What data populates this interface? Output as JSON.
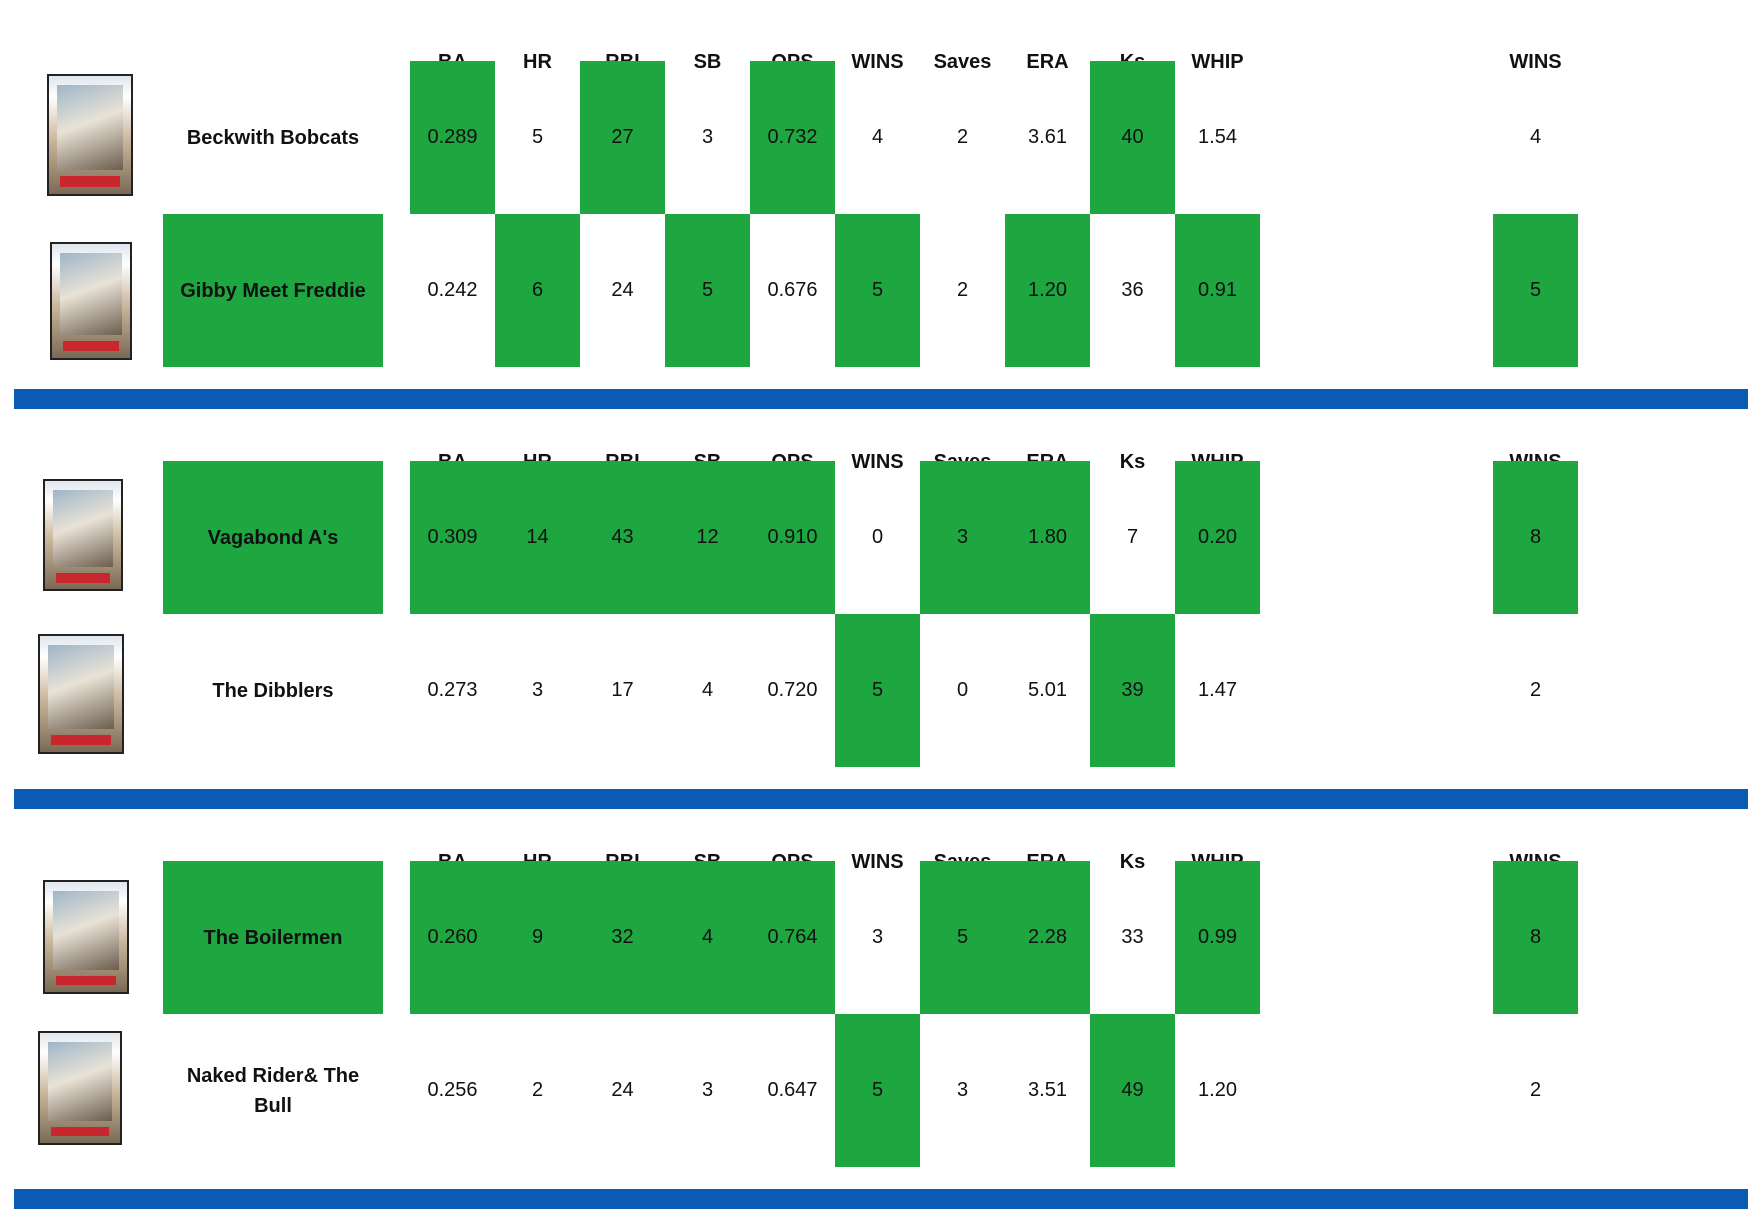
{
  "headers": [
    "BA",
    "HR",
    "RBI",
    "SB",
    "OPS",
    "WINS",
    "Saves",
    "ERA",
    "Ks",
    "WHIP"
  ],
  "wins_header": "WINS",
  "colors": {
    "win_highlight": "#1ea641",
    "divider": "#0b5ab4",
    "background": "#ffffff"
  },
  "card_icon": "baseball-card-image",
  "matchups": [
    {
      "teams": [
        {
          "name": "Beckwith Bobcats",
          "stats": [
            "0.289",
            "5",
            "27",
            "3",
            "0.732",
            "4",
            "2",
            "3.61",
            "40",
            "1.54"
          ],
          "cat_wins": [
            true,
            false,
            true,
            false,
            true,
            false,
            false,
            false,
            true,
            false
          ],
          "name_win": false,
          "wins": "4",
          "wins_highlight": false
        },
        {
          "name": "Gibby Meet Freddie",
          "stats": [
            "0.242",
            "6",
            "24",
            "5",
            "0.676",
            "5",
            "2",
            "1.20",
            "36",
            "0.91"
          ],
          "cat_wins": [
            false,
            true,
            false,
            true,
            false,
            true,
            false,
            true,
            false,
            true
          ],
          "name_win": true,
          "wins": "5",
          "wins_highlight": true
        }
      ]
    },
    {
      "teams": [
        {
          "name": "Vagabond A's",
          "stats": [
            "0.309",
            "14",
            "43",
            "12",
            "0.910",
            "0",
            "3",
            "1.80",
            "7",
            "0.20"
          ],
          "cat_wins": [
            true,
            true,
            true,
            true,
            true,
            false,
            true,
            true,
            false,
            true
          ],
          "name_win": true,
          "wins": "8",
          "wins_highlight": true
        },
        {
          "name": "The Dibblers",
          "stats": [
            "0.273",
            "3",
            "17",
            "4",
            "0.720",
            "5",
            "0",
            "5.01",
            "39",
            "1.47"
          ],
          "cat_wins": [
            false,
            false,
            false,
            false,
            false,
            true,
            false,
            false,
            true,
            false
          ],
          "name_win": false,
          "wins": "2",
          "wins_highlight": false
        }
      ]
    },
    {
      "teams": [
        {
          "name": "The Boilermen",
          "stats": [
            "0.260",
            "9",
            "32",
            "4",
            "0.764",
            "3",
            "5",
            "2.28",
            "33",
            "0.99"
          ],
          "cat_wins": [
            true,
            true,
            true,
            true,
            true,
            false,
            true,
            true,
            false,
            true
          ],
          "name_win": true,
          "wins": "8",
          "wins_highlight": true
        },
        {
          "name": "Naked Rider& The Bull",
          "stats": [
            "0.256",
            "2",
            "24",
            "3",
            "0.647",
            "5",
            "3",
            "3.51",
            "49",
            "1.20"
          ],
          "cat_wins": [
            false,
            false,
            false,
            false,
            false,
            true,
            false,
            false,
            true,
            false
          ],
          "name_win": false,
          "wins": "2",
          "wins_highlight": false
        }
      ]
    }
  ]
}
